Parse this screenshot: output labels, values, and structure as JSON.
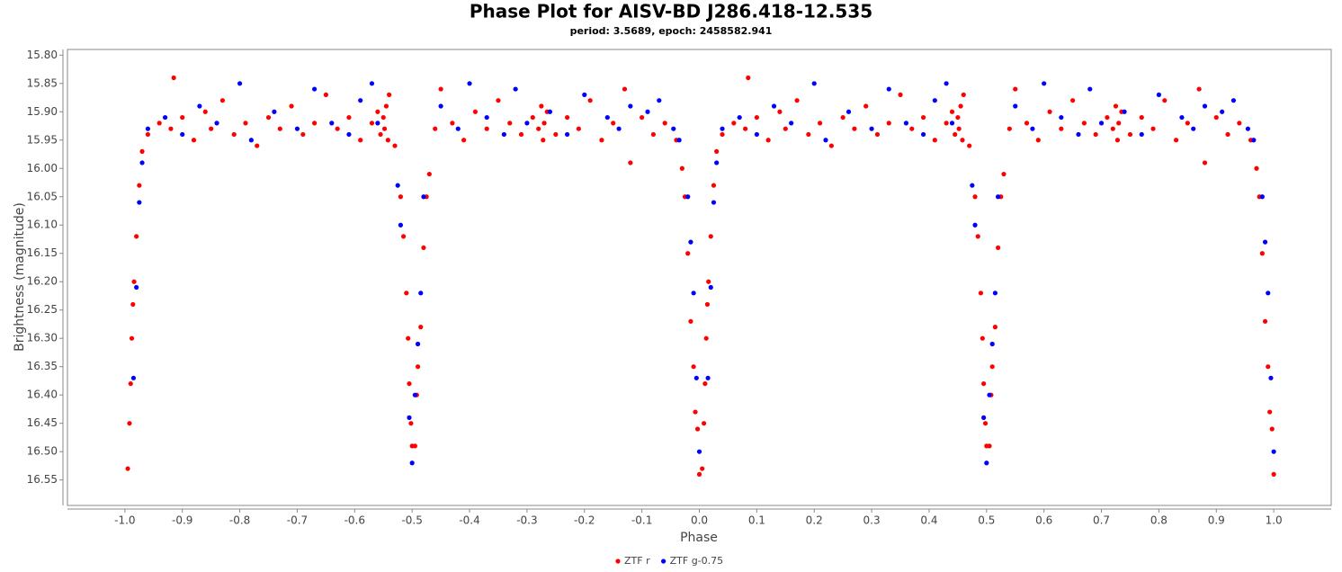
{
  "chart_data": {
    "type": "scatter",
    "title": "Phase Plot for AISV-BD J286.418-12.535",
    "subtitle": "period: 3.5689, epoch: 2458582.941",
    "x_label": "Phase",
    "y_label": "Brightness (magnitude)",
    "xlim": [
      -1.1,
      1.1
    ],
    "ylim": [
      15.79,
      16.595
    ],
    "y_inverted": true,
    "xticks": [
      {
        "value": -1,
        "label": "-1.0"
      },
      -0.9,
      -0.8,
      -0.7,
      -0.6,
      -0.5,
      -0.4,
      -0.3,
      -0.2,
      -0.1,
      {
        "value": 0,
        "label": "0.0"
      },
      0.1,
      0.2,
      0.3,
      0.4,
      0.5,
      0.6,
      0.7,
      0.8,
      0.9,
      {
        "value": 1,
        "label": "1.0"
      }
    ],
    "yticks": [
      {
        "value": 15.8,
        "label": "15.80"
      },
      15.85,
      {
        "value": 15.9,
        "label": "15.90"
      },
      15.95,
      {
        "value": 16,
        "label": "16.00"
      },
      16.05,
      {
        "value": 16.1,
        "label": "16.10"
      },
      16.15,
      {
        "value": 16.2,
        "label": "16.20"
      },
      16.25,
      {
        "value": 16.3,
        "label": "16.30"
      },
      16.35,
      {
        "value": 16.4,
        "label": "16.40"
      },
      16.45,
      {
        "value": 16.5,
        "label": "16.50"
      },
      16.55
    ],
    "legend": "bottom",
    "series": [
      {
        "name": "ZTF r",
        "color": "#ff0000",
        "x": [
          -0.995,
          -0.992,
          -0.99,
          -0.988,
          -0.986,
          -0.984,
          -0.98,
          -0.975,
          -0.97,
          -0.96,
          -0.94,
          -0.92,
          -0.915,
          -0.9,
          -0.88,
          -0.86,
          -0.85,
          -0.83,
          -0.81,
          -0.79,
          -0.77,
          -0.75,
          -0.73,
          -0.71,
          -0.69,
          -0.67,
          -0.65,
          -0.63,
          -0.61,
          -0.59,
          -0.57,
          -0.56,
          -0.555,
          -0.55,
          -0.548,
          -0.545,
          -0.542,
          -0.54,
          -0.53,
          -0.52,
          -0.515,
          -0.51,
          -0.507,
          -0.505,
          -0.502,
          -0.5,
          -0.495,
          -0.492,
          -0.49,
          -0.485,
          -0.48,
          -0.475,
          -0.47,
          -0.46,
          -0.45,
          -0.43,
          -0.41,
          -0.39,
          -0.37,
          -0.35,
          -0.33,
          -0.31,
          -0.29,
          -0.28,
          -0.275,
          -0.272,
          -0.27,
          -0.265,
          -0.25,
          -0.23,
          -0.21,
          -0.19,
          -0.17,
          -0.15,
          -0.13,
          -0.12,
          -0.1,
          -0.08,
          -0.06,
          -0.04,
          -0.03,
          -0.025,
          -0.02,
          -0.015,
          -0.01,
          -0.007,
          -0.003,
          0,
          0.005,
          0.008,
          0.01,
          0.012,
          0.014,
          0.016,
          0.02,
          0.025,
          0.03,
          0.04,
          0.06,
          0.08,
          0.085,
          0.1,
          0.12,
          0.14,
          0.15,
          0.17,
          0.19,
          0.21,
          0.23,
          0.25,
          0.27,
          0.29,
          0.31,
          0.33,
          0.35,
          0.37,
          0.39,
          0.41,
          0.43,
          0.44,
          0.445,
          0.45,
          0.452,
          0.455,
          0.458,
          0.46,
          0.47,
          0.48,
          0.485,
          0.49,
          0.493,
          0.495,
          0.498,
          0.5,
          0.505,
          0.508,
          0.51,
          0.515,
          0.52,
          0.525,
          0.53,
          0.54,
          0.55,
          0.57,
          0.59,
          0.61,
          0.63,
          0.65,
          0.67,
          0.69,
          0.71,
          0.72,
          0.725,
          0.728,
          0.73,
          0.735,
          0.75,
          0.77,
          0.79,
          0.81,
          0.83,
          0.85,
          0.87,
          0.88,
          0.9,
          0.92,
          0.94,
          0.96,
          0.97,
          0.975,
          0.98,
          0.985,
          0.99,
          0.993,
          0.997,
          1
        ],
        "values": [
          16.53,
          16.45,
          16.38,
          16.3,
          16.24,
          16.2,
          16.12,
          16.03,
          15.97,
          15.94,
          15.92,
          15.93,
          15.84,
          15.91,
          15.95,
          15.9,
          15.93,
          15.88,
          15.94,
          15.92,
          15.96,
          15.91,
          15.93,
          15.89,
          15.94,
          15.92,
          15.87,
          15.93,
          15.91,
          15.95,
          15.92,
          15.9,
          15.94,
          15.91,
          15.93,
          15.89,
          15.95,
          15.87,
          15.96,
          16.05,
          16.12,
          16.22,
          16.3,
          16.38,
          16.45,
          16.49,
          16.49,
          16.4,
          16.35,
          16.28,
          16.14,
          16.05,
          16.01,
          15.93,
          15.86,
          15.92,
          15.95,
          15.9,
          15.93,
          15.88,
          15.92,
          15.94,
          15.91,
          15.93,
          15.89,
          15.95,
          15.92,
          15.9,
          15.94,
          15.91,
          15.93,
          15.88,
          15.95,
          15.92,
          15.86,
          15.99,
          15.91,
          15.94,
          15.92,
          15.95,
          16,
          16.05,
          16.15,
          16.27,
          16.35,
          16.43,
          16.46,
          16.54,
          16.53,
          16.45,
          16.38,
          16.3,
          16.24,
          16.2,
          16.12,
          16.03,
          15.97,
          15.94,
          15.92,
          15.93,
          15.84,
          15.91,
          15.95,
          15.9,
          15.93,
          15.88,
          15.94,
          15.92,
          15.96,
          15.91,
          15.93,
          15.89,
          15.94,
          15.92,
          15.87,
          15.93,
          15.91,
          15.95,
          15.92,
          15.9,
          15.94,
          15.91,
          15.93,
          15.89,
          15.95,
          15.87,
          15.96,
          16.05,
          16.12,
          16.22,
          16.3,
          16.38,
          16.45,
          16.49,
          16.49,
          16.4,
          16.35,
          16.28,
          16.14,
          16.05,
          16.01,
          15.93,
          15.86,
          15.92,
          15.95,
          15.9,
          15.93,
          15.88,
          15.92,
          15.94,
          15.91,
          15.93,
          15.89,
          15.95,
          15.92,
          15.9,
          15.94,
          15.91,
          15.93,
          15.88,
          15.95,
          15.92,
          15.86,
          15.99,
          15.91,
          15.94,
          15.92,
          15.95,
          16,
          16.05,
          16.15,
          16.27,
          16.35,
          16.43,
          16.46,
          16.54
        ]
      },
      {
        "name": "ZTF g-0.75",
        "color": "#0000ff",
        "x": [
          -0.985,
          -0.98,
          -0.975,
          -0.97,
          -0.96,
          -0.93,
          -0.9,
          -0.87,
          -0.84,
          -0.8,
          -0.78,
          -0.74,
          -0.7,
          -0.67,
          -0.64,
          -0.61,
          -0.59,
          -0.57,
          -0.56,
          -0.525,
          -0.52,
          -0.505,
          -0.5,
          -0.495,
          -0.49,
          -0.485,
          -0.48,
          -0.45,
          -0.42,
          -0.4,
          -0.37,
          -0.34,
          -0.32,
          -0.3,
          -0.26,
          -0.23,
          -0.2,
          -0.16,
          -0.14,
          -0.12,
          -0.09,
          -0.07,
          -0.045,
          -0.035,
          -0.02,
          -0.015,
          -0.01,
          -0.005,
          0,
          0.015,
          0.02,
          0.025,
          0.03,
          0.04,
          0.07,
          0.1,
          0.13,
          0.16,
          0.2,
          0.22,
          0.26,
          0.3,
          0.33,
          0.36,
          0.39,
          0.41,
          0.43,
          0.44,
          0.475,
          0.48,
          0.495,
          0.5,
          0.505,
          0.51,
          0.515,
          0.52,
          0.55,
          0.58,
          0.6,
          0.63,
          0.66,
          0.68,
          0.7,
          0.74,
          0.77,
          0.8,
          0.84,
          0.86,
          0.88,
          0.91,
          0.93,
          0.955,
          0.965,
          0.98,
          0.985,
          0.99,
          0.995,
          1
        ],
        "values": [
          16.37,
          16.21,
          16.06,
          15.99,
          15.93,
          15.91,
          15.94,
          15.89,
          15.92,
          15.85,
          15.95,
          15.9,
          15.93,
          15.86,
          15.92,
          15.94,
          15.88,
          15.85,
          15.92,
          16.03,
          16.1,
          16.44,
          16.52,
          16.4,
          16.31,
          16.22,
          16.05,
          15.89,
          15.93,
          15.85,
          15.91,
          15.94,
          15.86,
          15.92,
          15.9,
          15.94,
          15.87,
          15.91,
          15.93,
          15.89,
          15.9,
          15.88,
          15.93,
          15.95,
          16.05,
          16.13,
          16.22,
          16.37,
          16.5,
          16.37,
          16.21,
          16.06,
          15.99,
          15.93,
          15.91,
          15.94,
          15.89,
          15.92,
          15.85,
          15.95,
          15.9,
          15.93,
          15.86,
          15.92,
          15.94,
          15.88,
          15.85,
          15.92,
          16.03,
          16.1,
          16.44,
          16.52,
          16.4,
          16.31,
          16.22,
          16.05,
          15.89,
          15.93,
          15.85,
          15.91,
          15.94,
          15.86,
          15.92,
          15.9,
          15.94,
          15.87,
          15.91,
          15.93,
          15.89,
          15.9,
          15.88,
          15.93,
          15.95,
          16.05,
          16.13,
          16.22,
          16.37,
          16.5
        ]
      }
    ]
  }
}
